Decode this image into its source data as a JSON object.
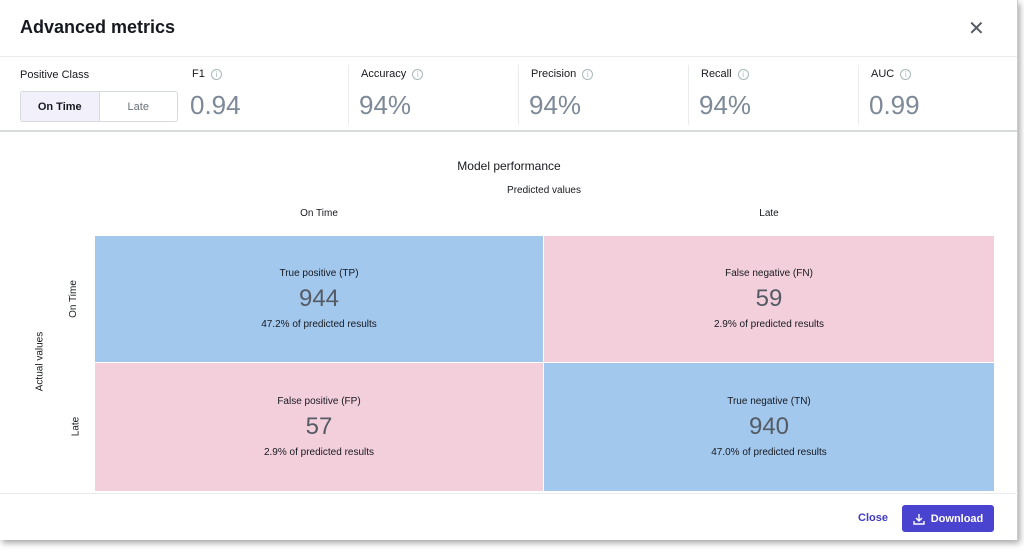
{
  "title": "Advanced metrics",
  "positive_class": {
    "label": "Positive Class",
    "options": [
      "On Time",
      "Late"
    ],
    "selected": "On Time"
  },
  "metrics": [
    {
      "label": "F1",
      "value": "0.94"
    },
    {
      "label": "Accuracy",
      "value": "94%"
    },
    {
      "label": "Precision",
      "value": "94%"
    },
    {
      "label": "Recall",
      "value": "94%"
    },
    {
      "label": "AUC",
      "value": "0.99"
    }
  ],
  "chart": {
    "title": "Model performance",
    "x_axis": "Predicted values",
    "y_axis": "Actual values",
    "columns": [
      "On Time",
      "Late"
    ],
    "rows": [
      "On Time",
      "Late"
    ],
    "cells": [
      {
        "label": "True positive (TP)",
        "count": "944",
        "pct": "47.2% of predicted results"
      },
      {
        "label": "False negative (FN)",
        "count": "59",
        "pct": "2.9% of predicted results"
      },
      {
        "label": "False positive (FP)",
        "count": "57",
        "pct": "2.9% of predicted results"
      },
      {
        "label": "True negative (TN)",
        "count": "940",
        "pct": "47.0% of predicted results"
      }
    ]
  },
  "footer": {
    "close": "Close",
    "download": "Download"
  }
}
